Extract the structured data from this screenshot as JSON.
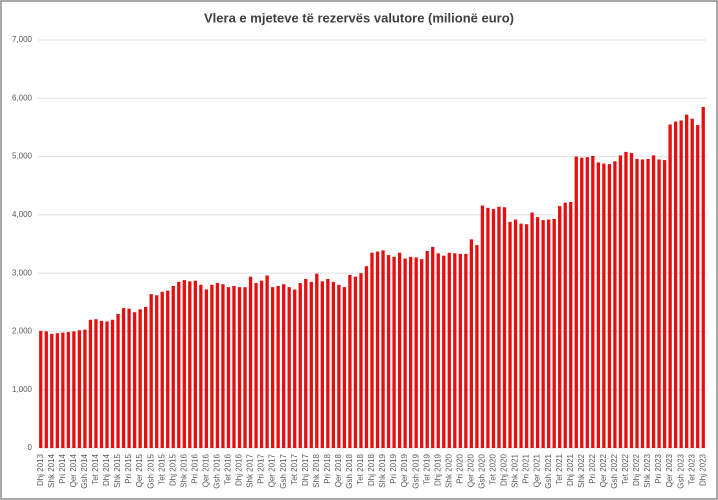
{
  "chart_data": {
    "type": "bar",
    "title": "Vlera e mjeteve të rezervës valutore (milionë euro)",
    "categories": [
      "Dhj 2013",
      null,
      "Shk 2014",
      null,
      "Pri 2014",
      null,
      "Qer 2014",
      null,
      "Gsh 2014",
      null,
      "Tet 2014",
      null,
      "Dhj 2014",
      null,
      "Shk 2015",
      null,
      "Pri 2015",
      null,
      "Qer 2015",
      null,
      "Gsh 2015",
      null,
      "Tet 2015",
      null,
      "Dhj 2015",
      null,
      "Shk 2016",
      null,
      "Pri 2016",
      null,
      "Qer 2016",
      null,
      "Gsh 2016",
      null,
      "Tet 2016",
      null,
      "Dhj 2016",
      null,
      "Shk 2017",
      null,
      "Pri 2017",
      null,
      "Qer 2017",
      null,
      "Gsh 2017",
      null,
      "Tet 2017",
      null,
      "Dhj 2017",
      null,
      "Shk 2018",
      null,
      "Pri 2018",
      null,
      "Qer 2018",
      null,
      "Gsh 2018",
      null,
      "Tet 2018",
      null,
      "Dhj 2018",
      null,
      "Shk 2019",
      null,
      "Pri 2019",
      null,
      "Qer 2019",
      null,
      "Gsh 2019",
      null,
      "Tet 2019",
      null,
      "Dhj 2019",
      null,
      "Shk 2020",
      null,
      "Pri 2020",
      null,
      "Qer 2020",
      null,
      "Gsh 2020",
      null,
      "Tet 2020",
      null,
      "Dhj 2020",
      null,
      "Shk 2021",
      null,
      "Pri 2021",
      null,
      "Qer 2021",
      null,
      "Gsh 2021",
      null,
      "Tet 2021",
      null,
      "Dhj 2021",
      null,
      "Shk 2022",
      null,
      "Pri 2022",
      null,
      "Qer 2022",
      null,
      "Gsh 2022",
      null,
      "Tet 2022",
      null,
      "Dhj 2022",
      null,
      "Shk 2023",
      null,
      "Pri 2023",
      null,
      "Qer 2023",
      null,
      "Gsh 2023",
      null,
      "Tet 2023",
      null,
      "Dhj 2023"
    ],
    "values": [
      2010,
      2000,
      1960,
      1970,
      1980,
      1990,
      2000,
      2020,
      2030,
      2200,
      2210,
      2180,
      2170,
      2200,
      2300,
      2400,
      2390,
      2330,
      2380,
      2420,
      2640,
      2620,
      2680,
      2700,
      2780,
      2850,
      2880,
      2860,
      2870,
      2800,
      2720,
      2800,
      2830,
      2810,
      2760,
      2780,
      2760,
      2760,
      2940,
      2830,
      2870,
      2960,
      2760,
      2780,
      2810,
      2760,
      2720,
      2830,
      2900,
      2850,
      2990,
      2860,
      2900,
      2850,
      2800,
      2760,
      2970,
      2940,
      3000,
      3120,
      3350,
      3370,
      3390,
      3310,
      3280,
      3350,
      3250,
      3280,
      3270,
      3240,
      3380,
      3450,
      3340,
      3300,
      3350,
      3340,
      3330,
      3330,
      3580,
      3480,
      4160,
      4120,
      4100,
      4140,
      4130,
      3880,
      3920,
      3850,
      3840,
      4040,
      3960,
      3910,
      3920,
      3930,
      4150,
      4210,
      4220,
      5000,
      4980,
      4990,
      5010,
      4900,
      4880,
      4870,
      4920,
      5020,
      5080,
      5060,
      4960,
      4950,
      4960,
      5020,
      4950,
      4940,
      5550,
      5600,
      5620,
      5720,
      5650,
      5540,
      5850
    ],
    "color": "#e31010",
    "ylim": [
      0,
      7000
    ],
    "yticks": [
      0,
      {
        "value": 1000,
        "label": "1,000"
      },
      {
        "value": 2000,
        "label": "2,000"
      },
      {
        "value": 3000,
        "label": "3,000"
      },
      {
        "value": 4000,
        "label": "4,000"
      },
      {
        "value": 5000,
        "label": "5,000"
      },
      {
        "value": 6000,
        "label": "6,000"
      },
      {
        "value": 7000,
        "label": "7,000"
      }
    ],
    "grid": true
  }
}
